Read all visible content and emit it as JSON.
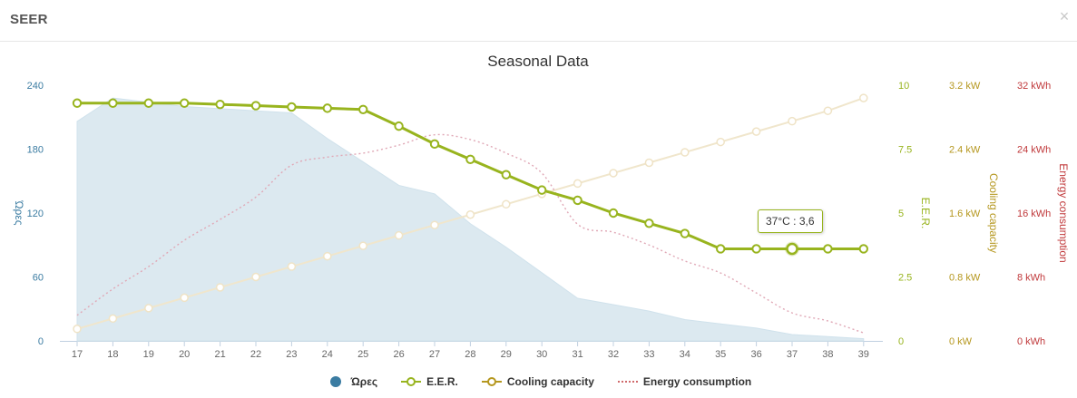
{
  "header": {
    "title": "SEER",
    "close_icon": "close-icon",
    "close_glyph": "×"
  },
  "tooltip": {
    "text": "37°C : 3,6"
  },
  "chart_data": {
    "type": "line",
    "title": "Seasonal Data",
    "x": [
      17,
      18,
      19,
      20,
      21,
      22,
      23,
      24,
      25,
      26,
      27,
      28,
      29,
      30,
      31,
      32,
      33,
      34,
      35,
      36,
      37,
      38,
      39
    ],
    "legend_position": "bottom",
    "grid": false,
    "axes": {
      "hours": {
        "label": "Ώρες",
        "ticks": [
          "0",
          "60",
          "120",
          "180",
          "240"
        ],
        "range": [
          0,
          240
        ],
        "color": "#3b7ca2"
      },
      "eer": {
        "label": "E.E.R.",
        "ticks": [
          "0",
          "2.5",
          "5",
          "7.5",
          "10"
        ],
        "range": [
          0,
          10
        ],
        "color": "#98b41e"
      },
      "capacity": {
        "label": "Cooling capacity",
        "ticks": [
          "0 kW",
          "0.8 kW",
          "1.6 kW",
          "2.4 kW",
          "3.2 kW"
        ],
        "range": [
          0,
          3.2
        ],
        "unit": "kW",
        "color": "#b5971e"
      },
      "energy": {
        "label": "Energy consumption",
        "ticks": [
          "0 kWh",
          "8 kWh",
          "16 kWh",
          "24 kWh",
          "32 kWh"
        ],
        "range": [
          0,
          32
        ],
        "unit": "kWh",
        "color": "#c0393b"
      }
    },
    "series": [
      {
        "name": "Ώρες",
        "axis": "hours",
        "type": "area",
        "color": "#3b7ca2",
        "values": [
          206,
          228,
          224,
          220,
          218,
          216,
          214,
          190,
          168,
          146,
          138,
          110,
          88,
          64,
          40,
          34,
          28,
          20,
          16,
          12,
          6,
          4,
          2
        ]
      },
      {
        "name": "E.E.R.",
        "axis": "eer",
        "type": "line",
        "color": "#98b41e",
        "values": [
          9.3,
          9.3,
          9.3,
          9.3,
          9.25,
          9.2,
          9.15,
          9.1,
          9.05,
          8.4,
          7.7,
          7.1,
          6.5,
          5.9,
          5.5,
          5.0,
          4.6,
          4.2,
          3.6,
          3.6,
          3.6,
          3.6,
          3.6
        ]
      },
      {
        "name": "Cooling capacity",
        "axis": "capacity",
        "type": "line",
        "color": "#b5971e",
        "values": [
          0.15,
          0.28,
          0.41,
          0.54,
          0.67,
          0.8,
          0.93,
          1.06,
          1.19,
          1.32,
          1.45,
          1.58,
          1.71,
          1.84,
          1.97,
          2.1,
          2.23,
          2.36,
          2.49,
          2.62,
          2.75,
          2.88,
          3.04
        ]
      },
      {
        "name": "Energy consumption",
        "axis": "energy",
        "type": "line",
        "dash": "dotted",
        "color": "#c0393b",
        "values": [
          3.2,
          6.5,
          9.3,
          12.6,
          15.2,
          18,
          22,
          23,
          23.5,
          24.5,
          25.8,
          25.2,
          23.5,
          21,
          14.6,
          13.6,
          12,
          10,
          8.5,
          6,
          3.5,
          2.5,
          1
        ]
      }
    ]
  }
}
